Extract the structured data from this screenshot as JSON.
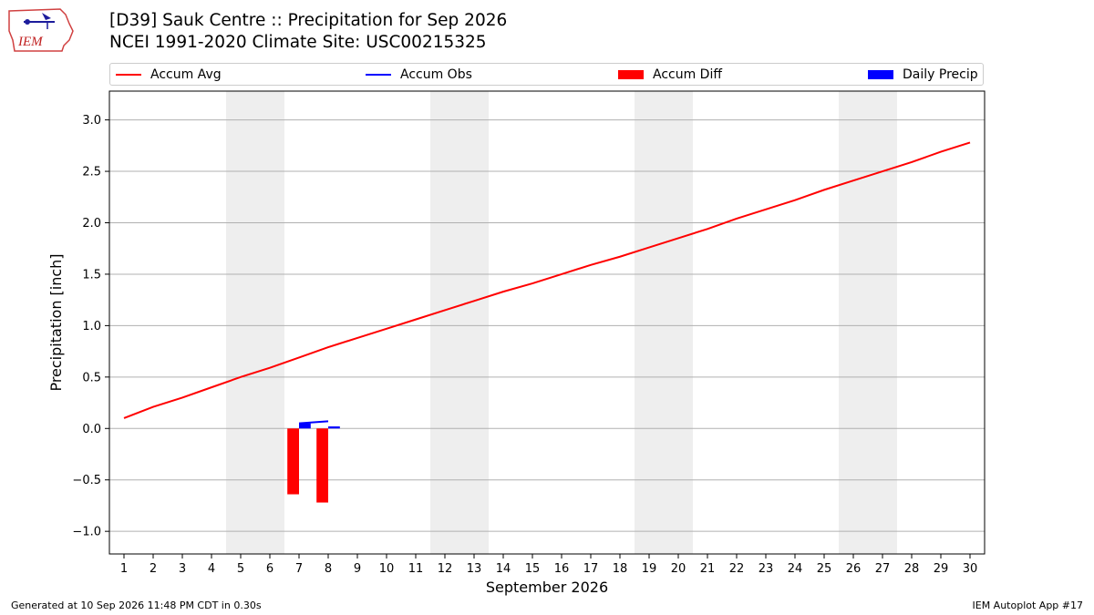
{
  "header": {
    "title_line1": "[D39] Sauk Centre :: Precipitation for Sep 2026",
    "title_line2": "NCEI 1991-2020 Climate Site: USC00215325",
    "logo_text": "IEM"
  },
  "legend": {
    "placement": "top, outside plot",
    "items": [
      {
        "label": "Accum Avg",
        "kind": "line",
        "color": "#ff0000"
      },
      {
        "label": "Accum Obs",
        "kind": "line",
        "color": "#0000ff"
      },
      {
        "label": "Accum Diff",
        "kind": "patch",
        "color": "#ff0000"
      },
      {
        "label": "Daily Precip",
        "kind": "patch",
        "color": "#0000ff"
      }
    ]
  },
  "footer": {
    "generated": "Generated at 10 Sep 2026 11:48 PM CDT in 0.30s",
    "app": "IEM Autoplot App #17"
  },
  "chart_data": {
    "type": "line",
    "title": "[D39] Sauk Centre :: Precipitation for Sep 2026",
    "subtitle": "NCEI 1991-2020 Climate Site: USC00215325",
    "xlabel": "September 2026",
    "ylabel": "Precipitation [inch]",
    "xlim": [
      0.5,
      30.5
    ],
    "ylim": [
      -1.22,
      3.28
    ],
    "x_ticks": [
      1,
      2,
      3,
      4,
      5,
      6,
      7,
      8,
      9,
      10,
      11,
      12,
      13,
      14,
      15,
      16,
      17,
      18,
      19,
      20,
      21,
      22,
      23,
      24,
      25,
      26,
      27,
      28,
      29,
      30
    ],
    "y_ticks": [
      -1.0,
      -0.5,
      0.0,
      0.5,
      1.0,
      1.5,
      2.0,
      2.5,
      3.0
    ],
    "y_tick_labels": [
      "−1.0",
      "−0.5",
      "0.0",
      "0.5",
      "1.0",
      "1.5",
      "2.0",
      "2.5",
      "3.0"
    ],
    "grid": "horizontal",
    "weekend_shading": [
      [
        5,
        6
      ],
      [
        12,
        13
      ],
      [
        19,
        20
      ],
      [
        26,
        27
      ]
    ],
    "series": [
      {
        "name": "Accum Avg",
        "kind": "line",
        "color": "#ff0000",
        "x": [
          1,
          2,
          3,
          4,
          5,
          6,
          7,
          8,
          9,
          10,
          11,
          12,
          13,
          14,
          15,
          16,
          17,
          18,
          19,
          20,
          21,
          22,
          23,
          24,
          25,
          26,
          27,
          28,
          29,
          30
        ],
        "values": [
          0.1,
          0.21,
          0.3,
          0.4,
          0.5,
          0.59,
          0.69,
          0.79,
          0.88,
          0.97,
          1.06,
          1.15,
          1.24,
          1.33,
          1.41,
          1.5,
          1.59,
          1.67,
          1.76,
          1.85,
          1.94,
          2.04,
          2.13,
          2.22,
          2.32,
          2.41,
          2.5,
          2.59,
          2.69,
          2.78
        ]
      },
      {
        "name": "Accum Obs",
        "kind": "line",
        "color": "#0000ff",
        "x": [
          7,
          8
        ],
        "values": [
          0.05,
          0.07
        ]
      },
      {
        "name": "Accum Diff",
        "kind": "bar",
        "color": "#ff0000",
        "align": "left",
        "x": [
          7,
          8
        ],
        "values": [
          -0.64,
          -0.72
        ]
      },
      {
        "name": "Daily Precip",
        "kind": "bar",
        "color": "#0000ff",
        "align": "right",
        "x": [
          7,
          8
        ],
        "values": [
          0.05,
          0.02
        ]
      }
    ]
  }
}
